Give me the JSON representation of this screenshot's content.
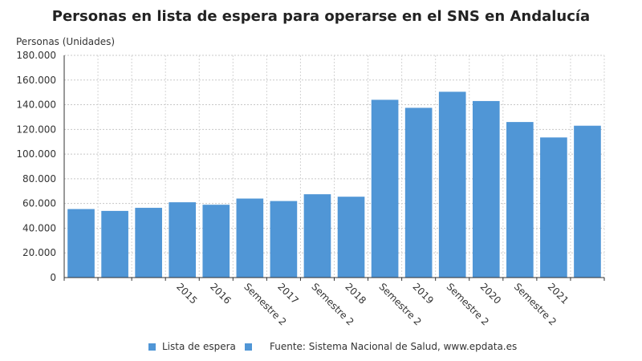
{
  "title": "Personas en lista de espera para operarse en el SNS en Andalucía",
  "y_axis_label": "Personas (Unidades)",
  "legend": [
    {
      "label": "Lista de espera",
      "color": "#5096d6"
    },
    {
      "label": "Fuente: Sistema Nacional de Salud, www.epdata.es",
      "color": "#5096d6"
    }
  ],
  "chart_data": {
    "type": "bar",
    "categories": [
      "",
      "",
      "",
      "2015",
      "2016",
      "Semestre 2",
      "2017",
      "Semestre 2",
      "2018",
      "Semestre 2",
      "2019",
      "Semestre 2",
      "2020",
      "Semestre 2",
      "2021",
      ""
    ],
    "series": [
      {
        "name": "Lista de espera",
        "color": "#5096d6",
        "values": [
          55500,
          54000,
          56500,
          61000,
          59000,
          64000,
          62000,
          67500,
          65500,
          144000,
          137500,
          150500,
          143000,
          126000,
          113500,
          123000
        ]
      }
    ],
    "ylim": [
      0,
      180000
    ],
    "yticks": [
      {
        "value": 0,
        "label": "0"
      },
      {
        "value": 20000,
        "label": "20.000"
      },
      {
        "value": 40000,
        "label": "40.000"
      },
      {
        "value": 60000,
        "label": "60.000"
      },
      {
        "value": 80000,
        "label": "80.000"
      },
      {
        "value": 100000,
        "label": "100.000"
      },
      {
        "value": 120000,
        "label": "120.000"
      },
      {
        "value": 140000,
        "label": "140.000"
      },
      {
        "value": 160000,
        "label": "160.000"
      },
      {
        "value": 180000,
        "label": "180.000"
      }
    ],
    "grid": true,
    "legend_position": "bottom"
  }
}
